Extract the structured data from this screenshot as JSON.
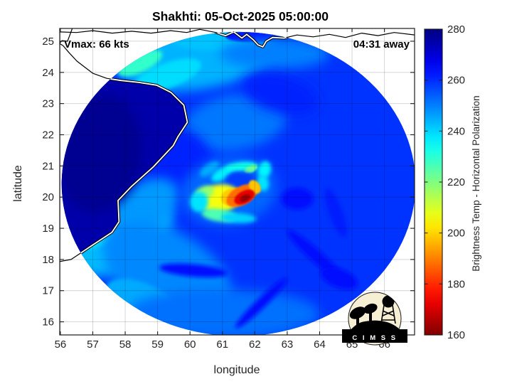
{
  "chart_data": {
    "type": "heatmap",
    "title": "Shakhti: 05-Oct-2025 05:00:00",
    "xlabel": "longitude",
    "ylabel": "latitude",
    "xlim": [
      55.98,
      66.93
    ],
    "ylim": [
      15.58,
      25.41
    ],
    "xticks": [
      56,
      57,
      58,
      59,
      60,
      61,
      62,
      63,
      64,
      65,
      66
    ],
    "yticks": [
      16,
      17,
      18,
      19,
      20,
      21,
      22,
      23,
      24,
      25
    ],
    "grid": true,
    "annotations": {
      "vmax": "Vmax: 66 kts",
      "eta": "04:31 away"
    },
    "colorbar": {
      "label": "Brightness Temp - Horizontal Polarization",
      "min": 160,
      "max": 280,
      "ticks": [
        280,
        260,
        240,
        220,
        200,
        180,
        160
      ],
      "colormap": "jet-reversed"
    },
    "storm": {
      "name": "Shakhti",
      "vmax_kts": 66,
      "time_to_pass": "04:31",
      "eye_lon": 61.55,
      "eye_lat": 20.55,
      "min_brightness_temp_k": 163
    },
    "swath": {
      "center_lon": 61.5,
      "center_lat": 20.42,
      "rx_deg": 5.46,
      "ry_deg": 4.88,
      "background_tb": 259
    },
    "land_tb": 275,
    "sea_features": [
      {
        "lon": 60.2,
        "lat": 24.45,
        "rx": 2.4,
        "ry": 1.0,
        "rot": -8,
        "tb": 244,
        "b": "lg"
      },
      {
        "lon": 59.3,
        "lat": 23.9,
        "rx": 1.1,
        "ry": 0.4,
        "rot": -20,
        "tb": 239,
        "b": "md"
      },
      {
        "lon": 58.45,
        "lat": 24.3,
        "rx": 0.75,
        "ry": 0.3,
        "rot": -25,
        "tb": 229,
        "b": "md"
      },
      {
        "lon": 60.7,
        "lat": 25.05,
        "rx": 1.3,
        "ry": 0.35,
        "rot": 0,
        "tb": 242,
        "b": "md"
      },
      {
        "lon": 61.9,
        "lat": 25.15,
        "rx": 0.8,
        "ry": 0.18,
        "rot": 0,
        "tb": 263,
        "b": "sm"
      },
      {
        "lon": 61.4,
        "lat": 22.4,
        "rx": 1.6,
        "ry": 0.9,
        "rot": -10,
        "tb": 251,
        "b": "lg"
      },
      {
        "lon": 62.6,
        "lat": 24.6,
        "rx": 1.7,
        "ry": 0.5,
        "rot": 0,
        "tb": 250,
        "b": "lg"
      },
      {
        "lon": 59.6,
        "lat": 20.9,
        "rx": 1.1,
        "ry": 1.3,
        "rot": 0,
        "tb": 261,
        "b": "lg"
      },
      {
        "lon": 57.9,
        "lat": 18.7,
        "rx": 1.7,
        "ry": 1.0,
        "rot": -30,
        "tb": 243,
        "b": "lg"
      },
      {
        "lon": 57.15,
        "lat": 18.95,
        "rx": 0.8,
        "ry": 0.5,
        "rot": -30,
        "tb": 238,
        "b": "md"
      },
      {
        "lon": 58.5,
        "lat": 19.6,
        "rx": 1.3,
        "ry": 0.8,
        "rot": -35,
        "tb": 247,
        "b": "lg"
      },
      {
        "lon": 59.3,
        "lat": 17.6,
        "rx": 2.2,
        "ry": 1.3,
        "rot": 30,
        "tb": 249,
        "b": "lg"
      },
      {
        "lon": 58.6,
        "lat": 16.6,
        "rx": 1.3,
        "ry": 0.6,
        "rot": 25,
        "tb": 245,
        "b": "md"
      },
      {
        "lon": 61.0,
        "lat": 16.25,
        "rx": 3.0,
        "ry": 0.8,
        "rot": 0,
        "tb": 252,
        "b": "lg"
      },
      {
        "lon": 60.1,
        "lat": 17.65,
        "rx": 1.05,
        "ry": 0.2,
        "rot": 5,
        "tb": 263,
        "b": "md"
      },
      {
        "lon": 62.2,
        "lat": 16.6,
        "rx": 1.1,
        "ry": 0.16,
        "rot": -44,
        "tb": 263,
        "b": "md"
      },
      {
        "lon": 63.9,
        "lat": 18.1,
        "rx": 1.2,
        "ry": 0.2,
        "rot": 42,
        "tb": 263,
        "b": "md"
      },
      {
        "lon": 64.5,
        "lat": 19.5,
        "rx": 0.8,
        "ry": 0.22,
        "rot": 70,
        "tb": 262,
        "b": "md"
      },
      {
        "lon": 62.8,
        "lat": 23.3,
        "rx": 1.2,
        "ry": 0.6,
        "rot": 15,
        "tb": 261,
        "b": "lg"
      },
      {
        "lon": 63.3,
        "lat": 19.95,
        "rx": 0.5,
        "ry": 0.35,
        "rot": 0,
        "tb": 264,
        "b": "md"
      },
      {
        "lon": 64.6,
        "lat": 17.4,
        "rx": 0.6,
        "ry": 0.3,
        "rot": 20,
        "tb": 264,
        "b": "md"
      }
    ],
    "land_features": [
      {
        "lon": 57.2,
        "lat": 21.4,
        "rx": 1.3,
        "ry": 1.9,
        "rot": 8,
        "tb": 278,
        "b": "lg"
      }
    ],
    "storm_features": [
      {
        "lon": 61.2,
        "lat": 20.2,
        "rx": 1.5,
        "ry": 1.1,
        "rot": -10,
        "tb": 253,
        "b": "lg"
      },
      {
        "lon": 60.6,
        "lat": 20.9,
        "rx": 0.35,
        "ry": 0.16,
        "rot": -35,
        "tb": 245,
        "b": "md"
      },
      {
        "lon": 61.0,
        "lat": 20.75,
        "rx": 0.38,
        "ry": 0.18,
        "rot": -30,
        "tb": 237,
        "b": "md"
      },
      {
        "lon": 61.6,
        "lat": 20.97,
        "rx": 0.5,
        "ry": 0.16,
        "rot": -5,
        "tb": 233,
        "b": "md"
      },
      {
        "lon": 61.88,
        "lat": 20.9,
        "rx": 0.22,
        "ry": 0.11,
        "rot": -25,
        "tb": 223,
        "b": "sm"
      },
      {
        "lon": 62.3,
        "lat": 20.88,
        "rx": 0.2,
        "ry": 0.28,
        "rot": 15,
        "tb": 236,
        "b": "md"
      },
      {
        "lon": 62.25,
        "lat": 20.45,
        "rx": 0.18,
        "ry": 0.26,
        "rot": -10,
        "tb": 238,
        "b": "md"
      },
      {
        "lon": 61.55,
        "lat": 20.55,
        "rx": 0.45,
        "ry": 0.26,
        "rot": 0,
        "tb": 258,
        "b": "md"
      },
      {
        "lon": 60.9,
        "lat": 19.95,
        "rx": 0.65,
        "ry": 0.45,
        "rot": -10,
        "tb": 206,
        "b": "md"
      },
      {
        "lon": 60.45,
        "lat": 20.15,
        "rx": 0.3,
        "ry": 0.2,
        "rot": -20,
        "tb": 218,
        "b": "md"
      },
      {
        "lon": 61.3,
        "lat": 20.0,
        "rx": 0.35,
        "ry": 0.28,
        "rot": -15,
        "tb": 199,
        "b": "sm"
      },
      {
        "lon": 60.9,
        "lat": 19.42,
        "rx": 0.55,
        "ry": 0.2,
        "rot": 8,
        "tb": 226,
        "b": "md"
      },
      {
        "lon": 60.28,
        "lat": 19.85,
        "rx": 0.28,
        "ry": 0.33,
        "rot": 0,
        "tb": 238,
        "b": "md"
      },
      {
        "lon": 61.5,
        "lat": 19.33,
        "rx": 0.55,
        "ry": 0.16,
        "rot": 3,
        "tb": 240,
        "b": "md"
      },
      {
        "lon": 61.6,
        "lat": 20.05,
        "rx": 0.52,
        "ry": 0.3,
        "rot": -28,
        "tb": 188,
        "b": "sm"
      },
      {
        "lon": 62.0,
        "lat": 20.33,
        "rx": 0.16,
        "ry": 0.24,
        "rot": -35,
        "tb": 198,
        "b": "sm"
      },
      {
        "lon": 61.68,
        "lat": 20.0,
        "rx": 0.34,
        "ry": 0.2,
        "rot": -28,
        "tb": 172,
        "b": "sm"
      },
      {
        "lon": 61.7,
        "lat": 19.97,
        "rx": 0.17,
        "ry": 0.1,
        "rot": -28,
        "tb": 163,
        "b": "sm"
      }
    ],
    "coastlines": {
      "makran": [
        [
          55.95,
          25.3
        ],
        [
          56.5,
          25.28
        ],
        [
          57.0,
          25.34
        ],
        [
          57.6,
          25.26
        ],
        [
          58.2,
          25.32
        ],
        [
          58.8,
          25.26
        ],
        [
          59.4,
          25.34
        ],
        [
          59.9,
          25.28
        ],
        [
          60.3,
          25.38
        ],
        [
          60.8,
          25.28
        ],
        [
          61.1,
          25.18
        ],
        [
          61.35,
          25.3
        ],
        [
          61.6,
          25.1
        ],
        [
          61.75,
          25.22
        ],
        [
          61.95,
          25.05
        ],
        [
          62.1,
          24.88
        ],
        [
          62.25,
          24.82
        ],
        [
          62.35,
          25.0
        ],
        [
          62.55,
          25.12
        ],
        [
          62.9,
          25.1
        ],
        [
          63.3,
          25.2
        ],
        [
          63.8,
          25.14
        ],
        [
          64.3,
          25.22
        ],
        [
          64.8,
          25.12
        ],
        [
          65.3,
          25.26
        ],
        [
          65.8,
          25.18
        ],
        [
          66.3,
          25.28
        ],
        [
          66.95,
          25.2
        ]
      ],
      "oman": [
        [
          56.4,
          25.5
        ],
        [
          56.29,
          25.19
        ],
        [
          56.22,
          25.0
        ],
        [
          56.05,
          25.02
        ],
        [
          55.97,
          24.93
        ],
        [
          56.08,
          24.86
        ],
        [
          56.27,
          24.63
        ],
        [
          56.51,
          24.36
        ],
        [
          56.8,
          24.13
        ],
        [
          57.0,
          23.97
        ],
        [
          57.43,
          23.81
        ],
        [
          57.87,
          23.74
        ],
        [
          58.42,
          23.68
        ],
        [
          58.97,
          23.59
        ],
        [
          59.41,
          23.36
        ],
        [
          59.81,
          22.95
        ],
        [
          59.92,
          22.4
        ],
        [
          59.63,
          21.94
        ],
        [
          59.48,
          21.65
        ],
        [
          58.86,
          20.96
        ],
        [
          58.2,
          20.35
        ],
        [
          57.78,
          19.89
        ],
        [
          57.81,
          19.21
        ],
        [
          57.59,
          18.87
        ],
        [
          56.99,
          18.46
        ],
        [
          56.59,
          18.18
        ],
        [
          56.33,
          18.0
        ],
        [
          55.95,
          17.93
        ]
      ]
    }
  },
  "logo": {
    "name": "CIMSS",
    "text": "C I M S S"
  }
}
